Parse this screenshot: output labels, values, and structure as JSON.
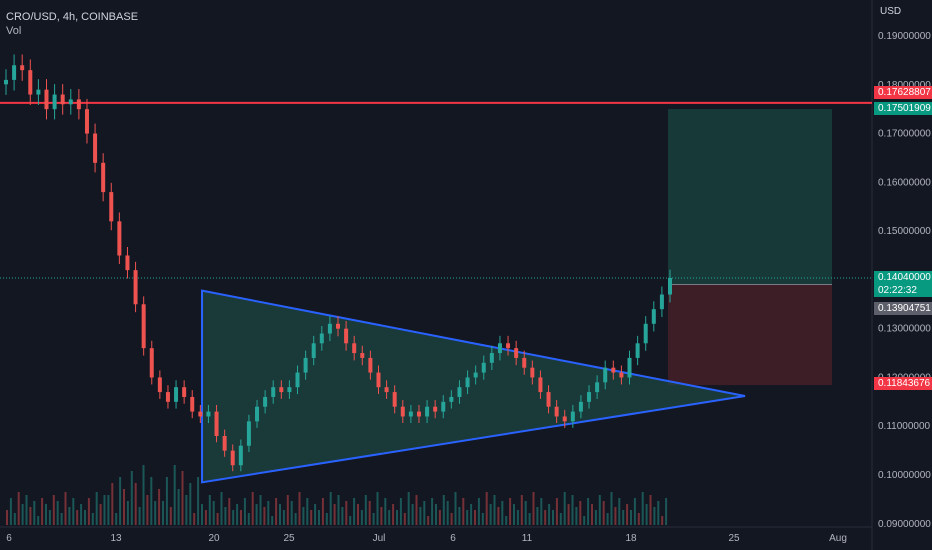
{
  "header": {
    "title": "CRO/USD, 4h, COINBASE",
    "volume_label": "Vol"
  },
  "price_axis": {
    "currency": "USD",
    "ticks": [
      "0.19000000",
      "0.18000000",
      "0.17000000",
      "0.16000000",
      "0.15000000",
      "0.13000000",
      "0.12000000",
      "0.11000000",
      "0.10000000",
      "0.09000000"
    ]
  },
  "time_axis": {
    "ticks": [
      "6",
      "13",
      "20",
      "25",
      "Jul",
      "6",
      "11",
      "18",
      "25",
      "Aug"
    ]
  },
  "price_tags": {
    "resistance": "0.17628807",
    "target": "0.17501909",
    "current": "0.14040000",
    "countdown": "02:22:32",
    "entry": "0.13904751",
    "stop": "0.11843676"
  },
  "colors": {
    "background": "#131722",
    "up": "#26a69a",
    "down": "#ef5350",
    "resistance": "#f23645",
    "triangle": "#2962ff",
    "triangle_fill": "#1e4a45",
    "target_zone": "#173a39",
    "stop_zone": "#3d1d26"
  },
  "chart_data": {
    "type": "candlestick",
    "symbol": "CRO/USD",
    "interval": "4h",
    "exchange": "COINBASE",
    "ylim": [
      0.09,
      0.195
    ],
    "resistance_level": 0.17628807,
    "current_price": 0.1404,
    "long_position": {
      "entry": 0.13904751,
      "target": 0.17501909,
      "stop": 0.11843676
    },
    "triangle": [
      {
        "date": "Jun 19",
        "price": 0.1378
      },
      {
        "date": "Jul 25",
        "price": 0.1162
      },
      {
        "date": "Jun 19",
        "price": 0.0985
      }
    ],
    "series": [
      {
        "values": [
          0.181,
          0.184,
          0.183,
          0.178,
          0.179,
          0.175,
          0.178,
          0.176,
          0.177,
          0.175,
          0.17,
          0.164,
          0.158,
          0.152,
          0.145,
          0.142,
          0.135,
          0.126,
          0.12,
          0.117,
          0.115,
          0.118,
          0.116,
          0.113,
          0.112,
          0.113,
          0.108,
          0.105,
          0.102,
          0.106,
          0.111,
          0.114,
          0.116,
          0.118,
          0.117,
          0.118,
          0.121,
          0.124,
          0.127,
          0.129,
          0.131,
          0.13,
          0.127,
          0.125,
          0.124,
          0.121,
          0.118,
          0.117,
          0.114,
          0.112,
          0.113,
          0.112,
          0.114,
          0.113,
          0.115,
          0.116,
          0.118,
          0.12,
          0.121,
          0.123,
          0.125,
          0.127,
          0.126,
          0.124,
          0.122,
          0.12,
          0.117,
          0.114,
          0.112,
          0.111,
          0.113,
          0.115,
          0.117,
          0.119,
          0.122,
          0.121,
          0.12,
          0.124,
          0.127,
          0.131,
          0.134,
          0.137,
          0.1404
        ]
      }
    ]
  }
}
